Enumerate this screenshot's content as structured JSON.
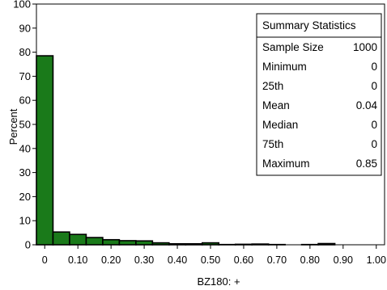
{
  "chart_data": {
    "type": "bar",
    "title": "",
    "xlabel": "BZ180:  +",
    "ylabel": "Percent",
    "ylim": [
      0,
      100
    ],
    "yticks": [
      0,
      10,
      20,
      30,
      40,
      50,
      60,
      70,
      80,
      90,
      100
    ],
    "xlim": [
      -0.025,
      1.025
    ],
    "xticks": [
      {
        "value": 0,
        "label": "0"
      },
      {
        "value": 0.1,
        "label": "0.10"
      },
      {
        "value": 0.2,
        "label": "0.20"
      },
      {
        "value": 0.3,
        "label": "0.30"
      },
      {
        "value": 0.4,
        "label": "0.40"
      },
      {
        "value": 0.5,
        "label": "0.50"
      },
      {
        "value": 0.6,
        "label": "0.60"
      },
      {
        "value": 0.7,
        "label": "0.70"
      },
      {
        "value": 0.8,
        "label": "0.80"
      },
      {
        "value": 0.9,
        "label": "0.90"
      },
      {
        "value": 1.0,
        "label": "1.00"
      }
    ],
    "bin_width": 0.05,
    "bins": [
      {
        "start": -0.025,
        "percent": 78.5
      },
      {
        "start": 0.025,
        "percent": 5.3
      },
      {
        "start": 0.075,
        "percent": 4.3
      },
      {
        "start": 0.125,
        "percent": 3.0
      },
      {
        "start": 0.175,
        "percent": 2.1
      },
      {
        "start": 0.225,
        "percent": 1.7
      },
      {
        "start": 0.275,
        "percent": 1.6
      },
      {
        "start": 0.325,
        "percent": 0.8
      },
      {
        "start": 0.375,
        "percent": 0.4
      },
      {
        "start": 0.425,
        "percent": 0.4
      },
      {
        "start": 0.475,
        "percent": 0.8
      },
      {
        "start": 0.525,
        "percent": 0.1
      },
      {
        "start": 0.575,
        "percent": 0.2
      },
      {
        "start": 0.625,
        "percent": 0.3
      },
      {
        "start": 0.675,
        "percent": 0.1
      },
      {
        "start": 0.725,
        "percent": 0.0
      },
      {
        "start": 0.775,
        "percent": 0.1
      },
      {
        "start": 0.825,
        "percent": 0.5
      }
    ],
    "bar_color": "#1a7a1a",
    "grid": false,
    "legend": "none",
    "inset_table": {
      "title": "Summary Statistics",
      "placement": "top-right",
      "rows": [
        {
          "label": "Sample Size",
          "value": "1000"
        },
        {
          "label": "Minimum",
          "value": "0"
        },
        {
          "label": "25th",
          "value": "0"
        },
        {
          "label": "Mean",
          "value": "0.04"
        },
        {
          "label": "Median",
          "value": "0"
        },
        {
          "label": "75th",
          "value": "0"
        },
        {
          "label": "Maximum",
          "value": "0.85"
        }
      ]
    }
  }
}
